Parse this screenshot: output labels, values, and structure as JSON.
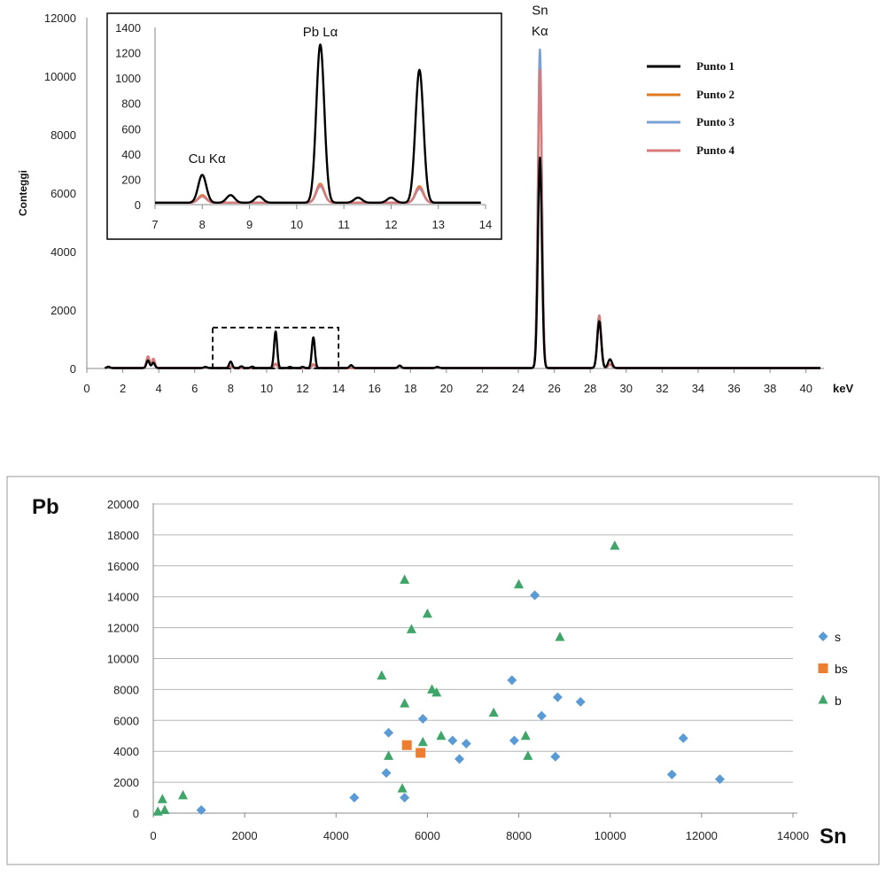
{
  "chart_data": [
    {
      "type": "line",
      "ylabel": "Conteggi",
      "xlabel": "keV",
      "xlim": [
        0,
        41
      ],
      "ylim": [
        0,
        12000
      ],
      "xticks": [
        0,
        2,
        4,
        6,
        8,
        10,
        12,
        14,
        16,
        18,
        20,
        22,
        24,
        26,
        28,
        30,
        32,
        34,
        36,
        38,
        40
      ],
      "yticks": [
        0,
        2000,
        4000,
        6000,
        8000,
        10000,
        12000
      ],
      "legend_position": "right",
      "annotations": [
        {
          "text": "Sn",
          "x": 25.2,
          "y": 12100
        },
        {
          "text": "Kα",
          "x": 25.2,
          "y": 11400
        }
      ],
      "zoom_box": {
        "x": [
          7,
          14
        ],
        "y": [
          0,
          1400
        ]
      },
      "series": [
        {
          "name": "Punto 1",
          "color": "#000000",
          "peaks": [
            [
              1.2,
              40
            ],
            [
              3.4,
              260
            ],
            [
              3.7,
              180
            ],
            [
              6.6,
              40
            ],
            [
              8.0,
              220
            ],
            [
              8.6,
              60
            ],
            [
              9.2,
              50
            ],
            [
              10.5,
              1250
            ],
            [
              11.3,
              40
            ],
            [
              12.0,
              40
            ],
            [
              12.6,
              1050
            ],
            [
              14.7,
              100
            ],
            [
              17.4,
              80
            ],
            [
              19.5,
              40
            ],
            [
              25.2,
              7200
            ],
            [
              28.5,
              1600
            ],
            [
              29.1,
              300
            ]
          ]
        },
        {
          "name": "Punto 2",
          "color": "#e07b22",
          "peaks": [
            [
              1.2,
              50
            ],
            [
              3.4,
              360
            ],
            [
              3.7,
              280
            ],
            [
              6.6,
              40
            ],
            [
              8.0,
              60
            ],
            [
              10.5,
              150
            ],
            [
              12.6,
              130
            ],
            [
              17.4,
              90
            ],
            [
              19.5,
              40
            ],
            [
              25.2,
              10000
            ],
            [
              28.5,
              1750
            ],
            [
              29.1,
              120
            ]
          ]
        },
        {
          "name": "Punto 3",
          "color": "#7aa0d6",
          "peaks": [
            [
              1.2,
              50
            ],
            [
              3.4,
              380
            ],
            [
              3.7,
              300
            ],
            [
              6.6,
              40
            ],
            [
              8.0,
              50
            ],
            [
              10.5,
              130
            ],
            [
              12.6,
              110
            ],
            [
              17.4,
              90
            ],
            [
              19.5,
              40
            ],
            [
              25.2,
              10900
            ],
            [
              28.5,
              1800
            ],
            [
              29.1,
              120
            ]
          ]
        },
        {
          "name": "Punto 4",
          "color": "#d97a7a",
          "peaks": [
            [
              1.2,
              50
            ],
            [
              3.4,
              400
            ],
            [
              3.7,
              320
            ],
            [
              6.6,
              40
            ],
            [
              8.0,
              50
            ],
            [
              10.5,
              140
            ],
            [
              12.6,
              120
            ],
            [
              17.4,
              90
            ],
            [
              19.5,
              40
            ],
            [
              25.2,
              10200
            ],
            [
              28.5,
              1800
            ],
            [
              29.1,
              130
            ]
          ]
        }
      ],
      "inset": {
        "xlim": [
          7,
          14
        ],
        "ylim": [
          0,
          1400
        ],
        "xticks": [
          7,
          8,
          9,
          10,
          11,
          12,
          13,
          14
        ],
        "yticks": [
          0,
          200,
          400,
          600,
          800,
          1000,
          1200,
          1400
        ],
        "annotations": [
          {
            "text": "Cu Kα",
            "x": 8.1,
            "y": 330
          },
          {
            "text": "Pb Lα",
            "x": 10.5,
            "y": 1330
          }
        ]
      }
    },
    {
      "type": "scatter",
      "xlabel": "Sn",
      "ylabel": "Pb",
      "xlim": [
        0,
        14000
      ],
      "ylim": [
        0,
        20000
      ],
      "xticks": [
        0,
        2000,
        4000,
        6000,
        8000,
        10000,
        12000,
        14000
      ],
      "yticks": [
        0,
        2000,
        4000,
        6000,
        8000,
        10000,
        12000,
        14000,
        16000,
        18000,
        20000
      ],
      "grid": "horizontal",
      "legend_position": "right",
      "series": [
        {
          "name": "s",
          "marker": "diamond",
          "color": "#5b9bd5",
          "points": [
            [
              1050,
              200
            ],
            [
              4400,
              1000
            ],
            [
              5100,
              2600
            ],
            [
              5150,
              5200
            ],
            [
              5500,
              1000
            ],
            [
              5900,
              6100
            ],
            [
              6550,
              4700
            ],
            [
              6700,
              3500
            ],
            [
              6850,
              4500
            ],
            [
              7850,
              8600
            ],
            [
              7900,
              4700
            ],
            [
              8350,
              14100
            ],
            [
              8500,
              6300
            ],
            [
              8800,
              3650
            ],
            [
              8850,
              7500
            ],
            [
              9350,
              7200
            ],
            [
              11350,
              2500
            ],
            [
              11600,
              4850
            ],
            [
              12400,
              2200
            ]
          ]
        },
        {
          "name": "bs",
          "marker": "square",
          "color": "#ed7d31",
          "points": [
            [
              5550,
              4400
            ],
            [
              5850,
              3900
            ]
          ]
        },
        {
          "name": "b",
          "marker": "triangle",
          "color": "#3fa66a",
          "points": [
            [
              100,
              100
            ],
            [
              200,
              900
            ],
            [
              250,
              200
            ],
            [
              650,
              1150
            ],
            [
              5000,
              8900
            ],
            [
              5150,
              3700
            ],
            [
              5450,
              1600
            ],
            [
              5500,
              15100
            ],
            [
              5500,
              7100
            ],
            [
              5650,
              11900
            ],
            [
              5900,
              4600
            ],
            [
              6000,
              12900
            ],
            [
              6100,
              8000
            ],
            [
              6200,
              7800
            ],
            [
              6300,
              5000
            ],
            [
              7450,
              6500
            ],
            [
              8000,
              14800
            ],
            [
              8150,
              5000
            ],
            [
              8200,
              3700
            ],
            [
              8900,
              11400
            ],
            [
              10100,
              17300
            ]
          ]
        }
      ]
    }
  ]
}
